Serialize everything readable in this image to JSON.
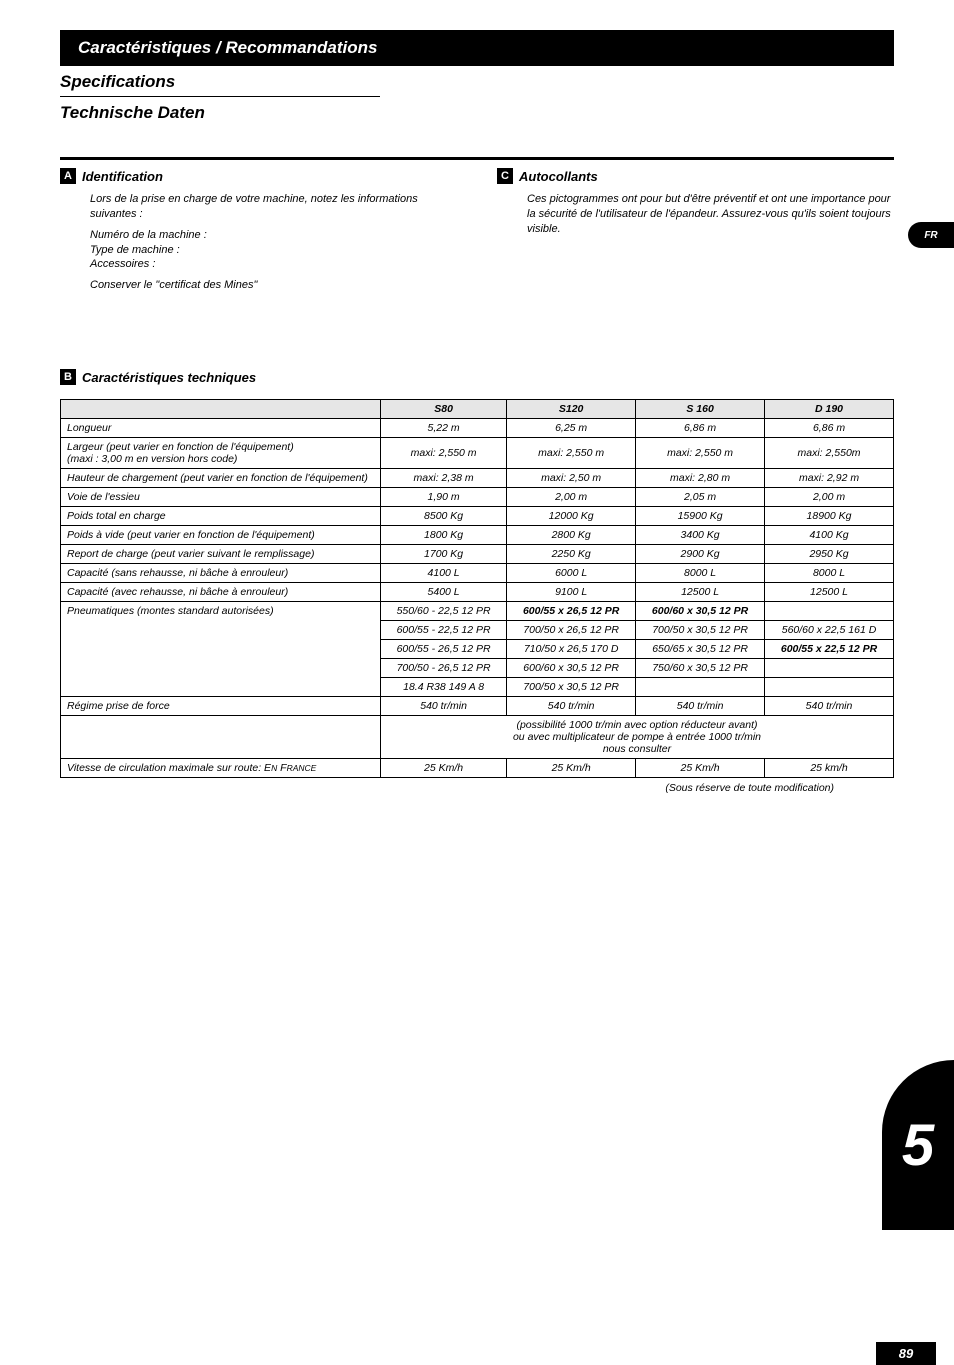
{
  "banner": "Caractéristiques / Recommandations",
  "subhead1": "Specifications",
  "subhead2": "Technische Daten",
  "lang_tab": "FR",
  "sectionA": {
    "letter": "A",
    "title": "Identification",
    "p1": "Lors de la prise en charge de votre machine, notez les informations suivantes :",
    "l1": "Numéro de la machine :",
    "l2": "Type de machine :",
    "l3": "Accessoires :",
    "p2": "Conserver le \"certificat des Mines\""
  },
  "sectionC": {
    "letter": "C",
    "title": "Autocollants",
    "p1": "Ces pictogrammes ont pour but d'être préventif et ont une importance pour la sécurité de l'utilisateur de l'épandeur. Assurez-vous qu'ils soient toujours visible."
  },
  "sectionB": {
    "letter": "B",
    "title": "Caractéristiques techniques"
  },
  "table": {
    "headers": [
      "",
      "S80",
      "S120",
      "S 160",
      "D 190"
    ],
    "rows": [
      [
        "Longueur",
        "5,22 m",
        "6,25 m",
        "6,86 m",
        "6,86 m"
      ],
      [
        "Largeur (peut varier en fonction de l'équipement)\n(maxi : 3,00 m en version hors code)",
        "maxi:  2,550 m",
        "maxi:  2,550 m",
        "maxi:  2,550 m",
        "maxi:  2,550m"
      ],
      [
        "Hauteur de chargement (peut varier en fonction de l'équipement)",
        "maxi:  2,38 m",
        "maxi:  2,50 m",
        "maxi:  2,80 m",
        "maxi:  2,92 m"
      ],
      [
        "Voie de l'essieu",
        "1,90 m",
        "2,00 m",
        "2,05 m",
        "2,00 m"
      ],
      [
        "Poids total en charge",
        "8500 Kg",
        "12000 Kg",
        "15900 Kg",
        "18900 Kg"
      ],
      [
        "Poids à vide (peut varier en fonction de l'équipement)",
        "1800 Kg",
        "2800 Kg",
        "3400 Kg",
        "4100 Kg"
      ],
      [
        "Report de charge (peut varier suivant le remplissage)",
        "1700 Kg",
        "2250 Kg",
        "2900 Kg",
        "2950 Kg"
      ],
      [
        "Capacité (sans rehausse, ni bâche à enrouleur)",
        "4100 L",
        "6000 L",
        "8000 L",
        "8000 L"
      ],
      [
        "Capacité (avec rehausse, ni bâche à enrouleur)",
        "5400 L",
        "9100 L",
        "12500 L",
        "12500 L"
      ]
    ],
    "pneu_label": "Pneumatiques (montes standard autorisées)",
    "pneu": [
      [
        "550/60 - 22,5 12 PR",
        "600/55 x 26,5 12 PR",
        "600/60 x 30,5 12 PR",
        ""
      ],
      [
        "600/55 - 22,5 12 PR",
        "700/50 x 26,5  12 PR",
        "700/50 x 30,5  12 PR",
        "560/60 x 22,5 161 D"
      ],
      [
        "600/55 - 26,5 12 PR",
        "710/50 x 26,5  170 D",
        "650/65 x 30,5  12 PR",
        "600/55 x 22,5 12 PR"
      ],
      [
        "700/50 - 26,5 12 PR",
        "600/60 x 30,5  12 PR",
        "750/60 x 30,5  12 PR",
        ""
      ],
      [
        "18.4 R38 149 A 8",
        "700/50 x 30,5  12 PR",
        "",
        ""
      ]
    ],
    "pneu_bold": [
      [
        false,
        true,
        true,
        false
      ],
      [
        false,
        false,
        false,
        false
      ],
      [
        false,
        false,
        false,
        true
      ],
      [
        false,
        false,
        false,
        false
      ],
      [
        false,
        false,
        false,
        false
      ]
    ],
    "regime_label": "Régime prise de force",
    "regime": [
      "540 tr/min",
      "540 tr/min",
      "540 tr/min",
      "540 tr/min"
    ],
    "regime_note": "(possibilité 1000 tr/min avec option réducteur avant)\nou avec multiplicateur de pompe à entrée 1000 tr/min\nnous consulter",
    "vitesse_label_a": "Vitesse de circulation maximale sur route: E",
    "vitesse_label_b": "N",
    "vitesse_label_c": " F",
    "vitesse_label_d": "RANCE",
    "vitesse": [
      "25 Km/h",
      "25 Km/h",
      "25 Km/h",
      "25 km/h"
    ]
  },
  "footnote": "(Sous réserve de toute modification)",
  "chapter": "5",
  "pagenum": "89"
}
